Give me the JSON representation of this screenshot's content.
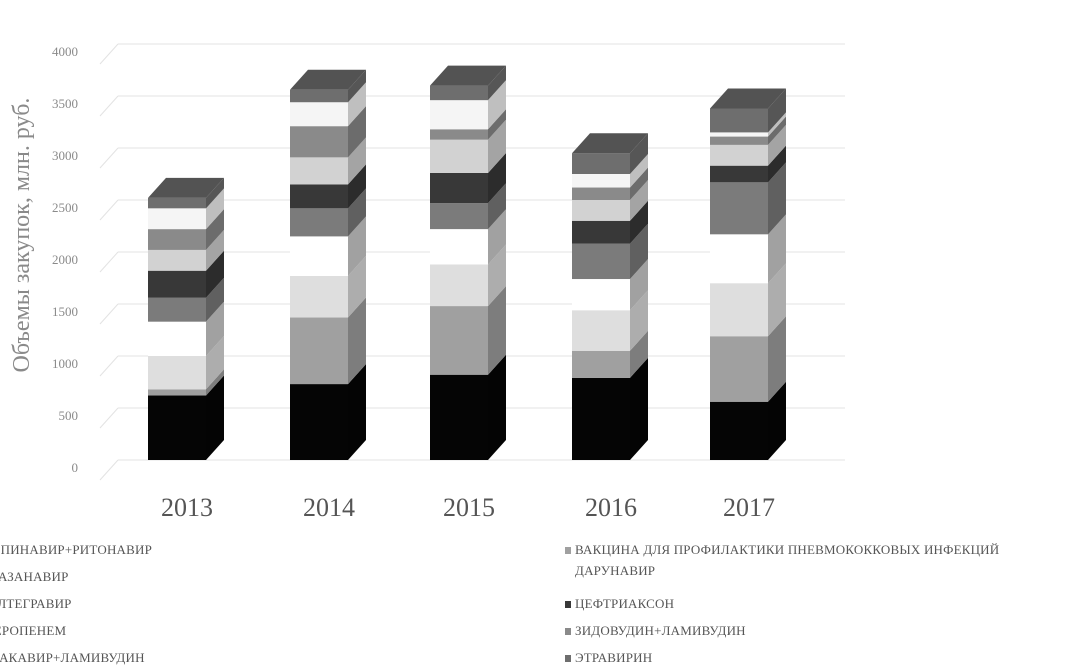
{
  "chart_data": {
    "type": "bar",
    "stacked": true,
    "style": "3d",
    "title": "",
    "xlabel": "",
    "ylabel": "Объемы закупок, млн. руб.",
    "ylim": [
      0,
      4000
    ],
    "yticks": [
      0,
      500,
      1000,
      1500,
      2000,
      2500,
      3000,
      3500,
      4000
    ],
    "grid": true,
    "legend_position": "bottom",
    "categories": [
      "2013",
      "2014",
      "2015",
      "2016",
      "2017"
    ],
    "series": [
      {
        "name": "ЛОПИНАВИР+РИТОНАВИР",
        "color": "#050505",
        "values": [
          620,
          730,
          820,
          790,
          560
        ]
      },
      {
        "name": "ВАКЦИНА ДЛЯ ПРОФИЛАКТИКИ ПНЕВМОКОККОВЫХ ИНФЕКЦИЙ",
        "color": "#a0a0a0",
        "values": [
          60,
          640,
          660,
          260,
          630
        ]
      },
      {
        "name": "АТАЗАНАВИР",
        "color": "#dedede",
        "values": [
          320,
          400,
          400,
          390,
          510
        ]
      },
      {
        "name": "ДАРУНАВИР",
        "color": "#ffffff",
        "values": [
          330,
          380,
          340,
          300,
          470
        ]
      },
      {
        "name": "РАЛТЕГРАВИР",
        "color": "#7b7b7b",
        "values": [
          230,
          270,
          250,
          340,
          500
        ]
      },
      {
        "name": "ЦЕФТРИАКСОН",
        "color": "#383838",
        "values": [
          260,
          230,
          290,
          220,
          160
        ]
      },
      {
        "name": "МЕРОПЕНЕМ",
        "color": "#d2d2d2",
        "values": [
          200,
          260,
          320,
          200,
          200
        ]
      },
      {
        "name": "ЗИДОВУДИН+ЛАМИВУДИН",
        "color": "#8a8a8a",
        "values": [
          200,
          300,
          100,
          120,
          80
        ]
      },
      {
        "name": "АБАКАВИР+ЛАМИВУДИН",
        "color": "#f5f5f5",
        "values": [
          200,
          230,
          280,
          130,
          40
        ]
      },
      {
        "name": "ЭТРАВИРИН",
        "color": "#6e6e6e",
        "values": [
          100,
          120,
          140,
          200,
          230
        ]
      }
    ]
  },
  "legend_items": [
    {
      "label": "ЛОПИНАВИР+РИТОНАВИР",
      "color": "#050505"
    },
    {
      "label": "ВАКЦИНА ДЛЯ ПРОФИЛАКТИКИ ПНЕВМОКОККОВЫХ ИНФЕКЦИЙ",
      "color": "#a0a0a0"
    },
    {
      "label": "АТАЗАНАВИР",
      "color": "#dedede"
    },
    {
      "label": "ДАРУНАВИР",
      "color": "#ffffff"
    },
    {
      "label": "РАЛТЕГРАВИР",
      "color": "#7b7b7b"
    },
    {
      "label": "ЦЕФТРИАКСОН",
      "color": "#383838"
    },
    {
      "label": "МЕРОПЕНЕМ",
      "color": "#d2d2d2"
    },
    {
      "label": "ЗИДОВУДИН+ЛАМИВУДИН",
      "color": "#8a8a8a"
    },
    {
      "label": "АБАКАВИР+ЛАМИВУДИН",
      "color": "#f5f5f5"
    },
    {
      "label": "ЭТРАВИРИН",
      "color": "#6e6e6e"
    }
  ]
}
